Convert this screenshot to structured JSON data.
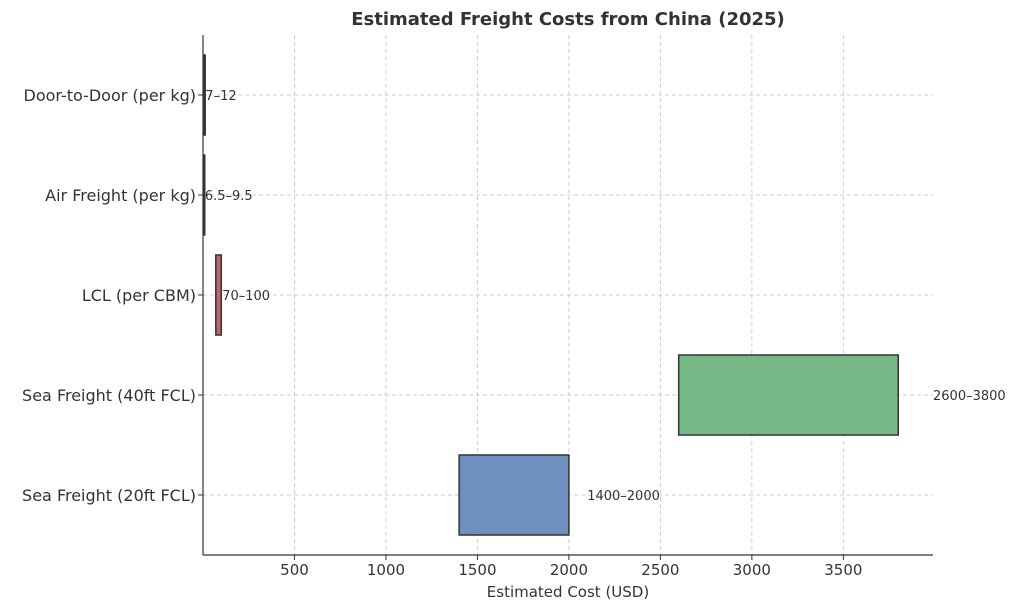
{
  "chart_data": {
    "type": "bar",
    "orientation": "horizontal",
    "floating": true,
    "title": "Estimated Freight Costs from China (2025)",
    "xlabel": "Estimated Cost (USD)",
    "ylabel": "",
    "xlim": [
      0,
      3990
    ],
    "xticks": [
      500,
      1000,
      1500,
      2000,
      2500,
      3000,
      3500
    ],
    "grid": true,
    "categories": [
      "Sea Freight (20ft FCL)",
      "Sea Freight (40ft FCL)",
      "LCL (per CBM)",
      "Air Freight (per kg)",
      "Door-to-Door (per kg)"
    ],
    "low": [
      1400,
      2600,
      70,
      6.5,
      7
    ],
    "high": [
      2000,
      3800,
      100,
      9.5,
      12
    ],
    "labels": [
      "1400–2000",
      "2600–3800",
      "70–100",
      "6.5–9.5",
      "7–12"
    ],
    "colors": [
      "#6f8fbf",
      "#74b886",
      "#c4626a",
      "#8c6bb1",
      "#e8a060"
    ]
  }
}
